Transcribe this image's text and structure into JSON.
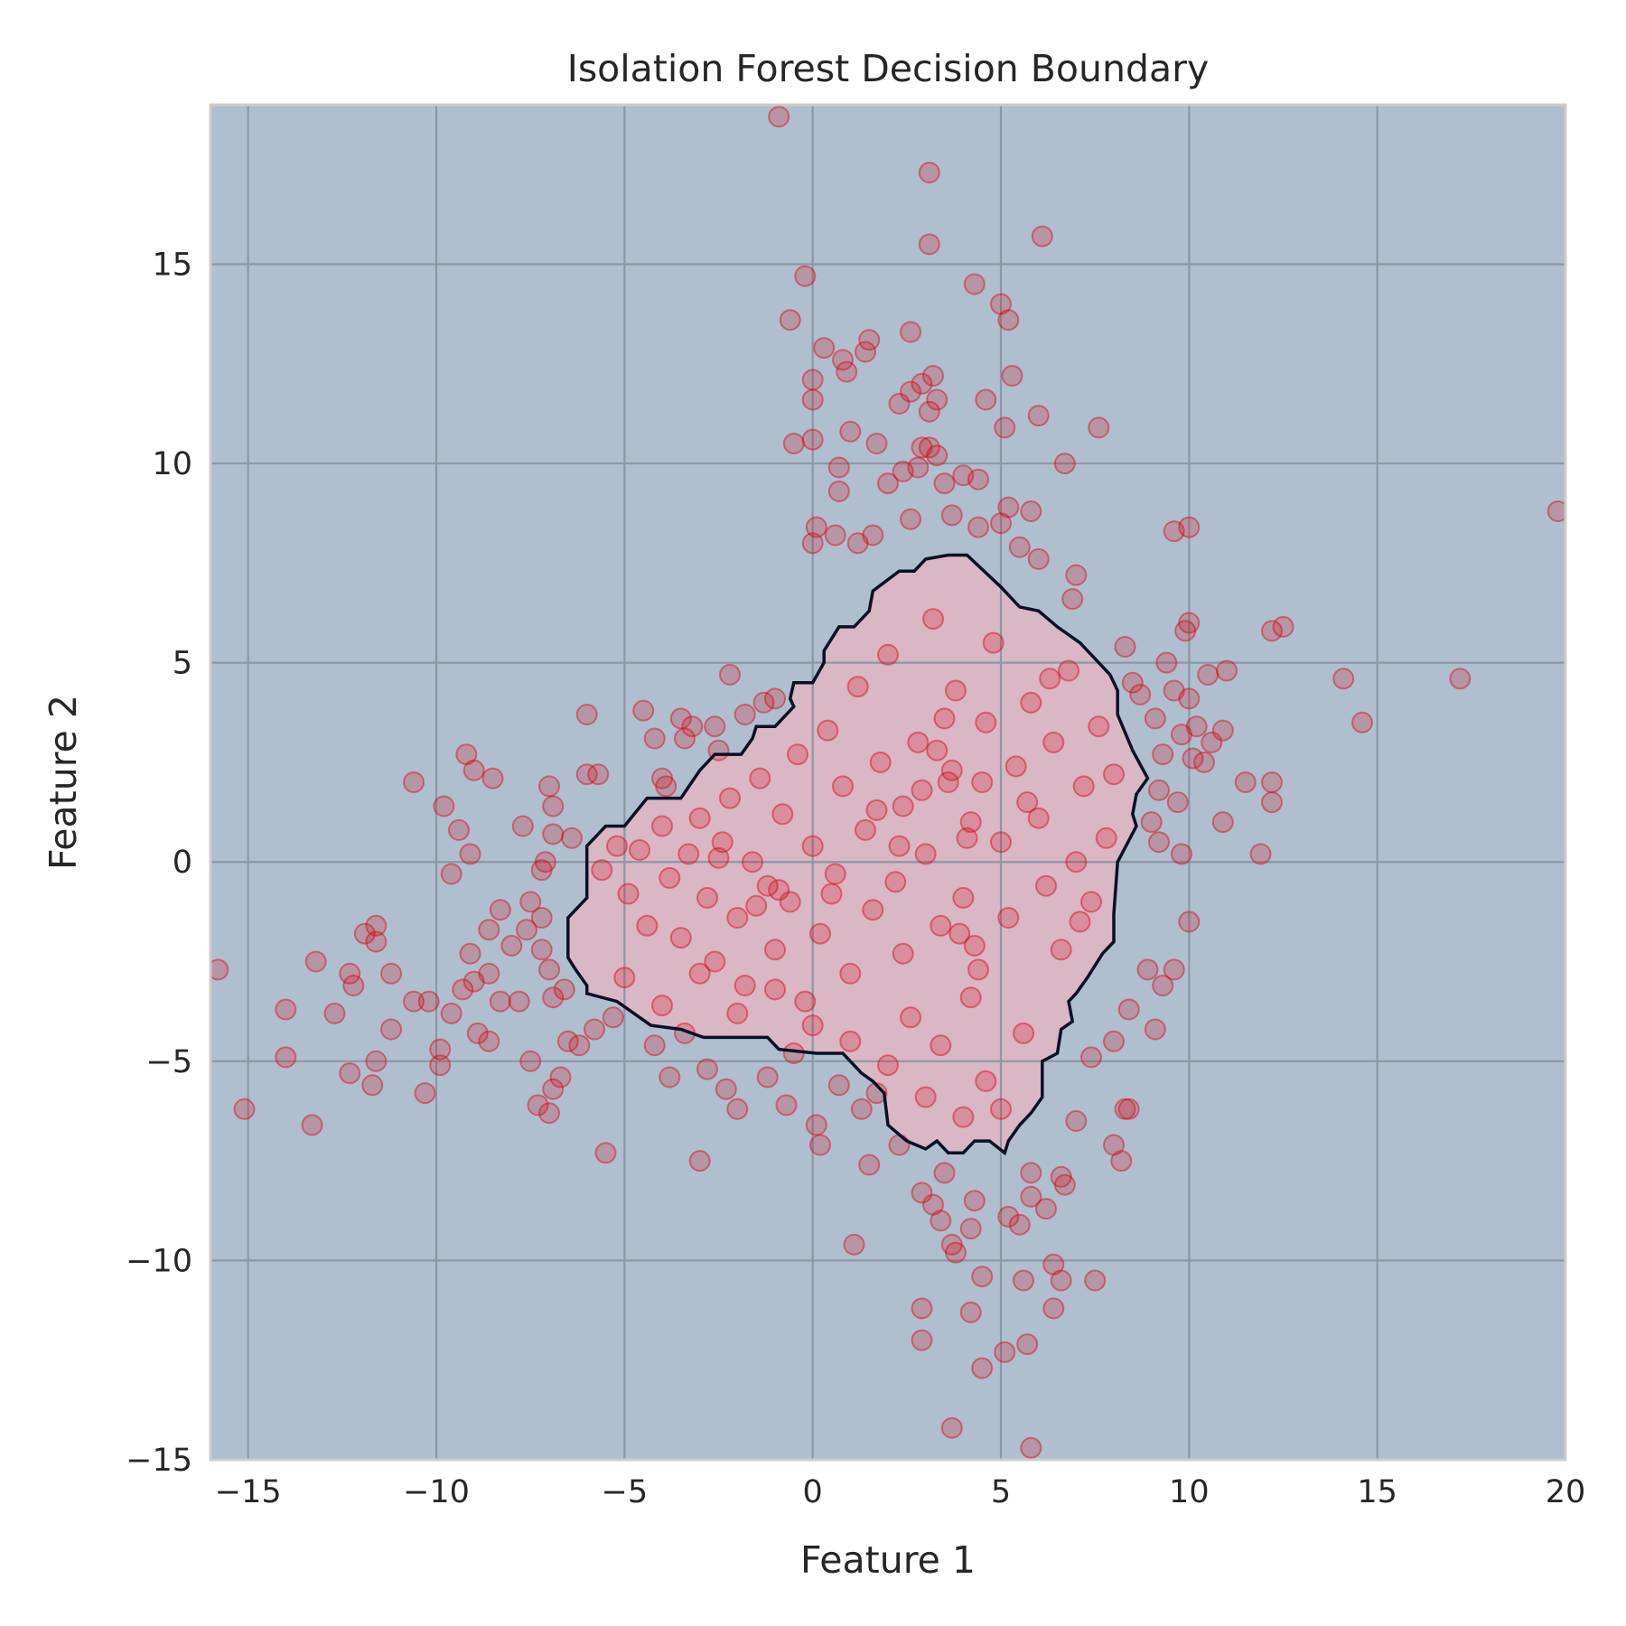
{
  "chart_data": {
    "type": "scatter",
    "title": "Isolation Forest Decision Boundary",
    "xlabel": "Feature 1",
    "ylabel": "Feature 2",
    "xlim": [
      -16,
      20
    ],
    "ylim": [
      -15,
      19
    ],
    "xticks": [
      -15,
      -10,
      -5,
      0,
      5,
      10,
      15,
      20
    ],
    "yticks": [
      -15,
      -10,
      -5,
      0,
      5,
      10,
      15
    ],
    "xtick_labels": [
      "−15",
      "−10",
      "−5",
      "0",
      "5",
      "10",
      "15",
      "20"
    ],
    "ytick_labels": [
      "−15",
      "−10",
      "−5",
      "0",
      "5",
      "10",
      "15"
    ],
    "grid": true,
    "colors": {
      "outlier_region": "#b0bfcf",
      "inlier_region": "#d9b7c4",
      "points": "#d7000f",
      "boundary": "#0b1026",
      "grid": "#8c97a6"
    },
    "boundary": [
      [
        -6.0,
        0.4
      ],
      [
        -5.5,
        0.9
      ],
      [
        -5.0,
        0.9
      ],
      [
        -4.4,
        1.6
      ],
      [
        -3.5,
        1.6
      ],
      [
        -3.0,
        2.3
      ],
      [
        -2.6,
        2.7
      ],
      [
        -1.9,
        2.7
      ],
      [
        -1.6,
        3.1
      ],
      [
        -1.5,
        3.4
      ],
      [
        -1.0,
        3.4
      ],
      [
        -0.5,
        3.9
      ],
      [
        -0.6,
        4.1
      ],
      [
        -0.5,
        4.5
      ],
      [
        0.0,
        4.5
      ],
      [
        0.3,
        5.0
      ],
      [
        0.3,
        5.3
      ],
      [
        0.5,
        5.6
      ],
      [
        0.7,
        5.9
      ],
      [
        1.1,
        5.9
      ],
      [
        1.5,
        6.3
      ],
      [
        1.6,
        6.8
      ],
      [
        2.3,
        7.3
      ],
      [
        2.7,
        7.3
      ],
      [
        3.0,
        7.6
      ],
      [
        3.6,
        7.7
      ],
      [
        4.1,
        7.7
      ],
      [
        5.0,
        6.9
      ],
      [
        5.5,
        6.4
      ],
      [
        6.0,
        6.3
      ],
      [
        6.5,
        5.9
      ],
      [
        7.1,
        5.5
      ],
      [
        7.5,
        5.1
      ],
      [
        7.9,
        4.7
      ],
      [
        8.1,
        4.3
      ],
      [
        8.1,
        3.7
      ],
      [
        8.5,
        2.8
      ],
      [
        8.9,
        2.1
      ],
      [
        8.6,
        1.7
      ],
      [
        8.5,
        1.2
      ],
      [
        8.6,
        0.9
      ],
      [
        8.1,
        0.0
      ],
      [
        8.0,
        -1.3
      ],
      [
        8.0,
        -2.0
      ],
      [
        7.7,
        -2.3
      ],
      [
        7.3,
        -2.9
      ],
      [
        7.0,
        -3.3
      ],
      [
        6.8,
        -3.5
      ],
      [
        6.9,
        -4.0
      ],
      [
        6.6,
        -4.2
      ],
      [
        6.5,
        -4.8
      ],
      [
        6.1,
        -5.0
      ],
      [
        6.1,
        -5.9
      ],
      [
        5.8,
        -6.3
      ],
      [
        5.5,
        -6.6
      ],
      [
        5.2,
        -7.0
      ],
      [
        5.1,
        -7.3
      ],
      [
        4.7,
        -7.0
      ],
      [
        4.3,
        -7.0
      ],
      [
        4.0,
        -7.3
      ],
      [
        3.6,
        -7.3
      ],
      [
        3.3,
        -7.0
      ],
      [
        3.0,
        -7.2
      ],
      [
        2.5,
        -7.0
      ],
      [
        2.0,
        -6.6
      ],
      [
        1.9,
        -5.8
      ],
      [
        1.6,
        -5.5
      ],
      [
        1.3,
        -5.3
      ],
      [
        0.8,
        -4.8
      ],
      [
        0.1,
        -4.8
      ],
      [
        -0.9,
        -4.7
      ],
      [
        -1.2,
        -4.4
      ],
      [
        -2.9,
        -4.4
      ],
      [
        -3.5,
        -4.2
      ],
      [
        -4.3,
        -4.1
      ],
      [
        -5.2,
        -3.5
      ],
      [
        -6.0,
        -3.3
      ],
      [
        -6.0,
        -3.1
      ],
      [
        -6.3,
        -2.7
      ],
      [
        -6.5,
        -2.4
      ],
      [
        -6.5,
        -1.4
      ],
      [
        -6.0,
        -0.9
      ]
    ],
    "outliers": [
      [
        -0.9,
        18.7
      ],
      [
        3.1,
        17.3
      ],
      [
        3.1,
        15.5
      ],
      [
        6.1,
        15.7
      ],
      [
        -0.2,
        14.7
      ],
      [
        4.3,
        14.5
      ],
      [
        5.0,
        14.0
      ],
      [
        -0.6,
        13.6
      ],
      [
        5.2,
        13.6
      ],
      [
        0.3,
        12.9
      ],
      [
        1.5,
        13.1
      ],
      [
        2.6,
        13.3
      ],
      [
        0.8,
        12.6
      ],
      [
        1.4,
        12.8
      ],
      [
        0.0,
        12.1
      ],
      [
        3.2,
        12.2
      ],
      [
        5.3,
        12.2
      ],
      [
        0.9,
        12.3
      ],
      [
        2.9,
        12.0
      ],
      [
        2.6,
        11.8
      ],
      [
        0.0,
        11.6
      ],
      [
        2.3,
        11.5
      ],
      [
        3.3,
        11.6
      ],
      [
        4.6,
        11.6
      ],
      [
        3.1,
        11.3
      ],
      [
        6.0,
        11.2
      ],
      [
        5.1,
        10.9
      ],
      [
        7.6,
        10.9
      ],
      [
        1.0,
        10.8
      ],
      [
        3.1,
        10.4
      ],
      [
        -0.5,
        10.5
      ],
      [
        0.0,
        10.6
      ],
      [
        1.7,
        10.5
      ],
      [
        2.9,
        10.4
      ],
      [
        3.3,
        10.2
      ],
      [
        0.7,
        9.9
      ],
      [
        2.4,
        9.8
      ],
      [
        2.8,
        9.9
      ],
      [
        4.0,
        9.7
      ],
      [
        6.7,
        10.0
      ],
      [
        2.0,
        9.5
      ],
      [
        3.5,
        9.5
      ],
      [
        4.4,
        9.6
      ],
      [
        0.7,
        9.3
      ],
      [
        5.2,
        8.9
      ],
      [
        5.8,
        8.8
      ],
      [
        2.6,
        8.6
      ],
      [
        3.7,
        8.7
      ],
      [
        4.4,
        8.4
      ],
      [
        0.1,
        8.4
      ],
      [
        1.2,
        8.0
      ],
      [
        5.0,
        8.5
      ],
      [
        9.6,
        8.3
      ],
      [
        10.0,
        8.4
      ],
      [
        0.0,
        8.0
      ],
      [
        0.6,
        8.2
      ],
      [
        1.6,
        8.2
      ],
      [
        5.5,
        7.9
      ],
      [
        6.0,
        7.6
      ],
      [
        7.0,
        7.2
      ],
      [
        6.9,
        6.6
      ],
      [
        8.3,
        5.4
      ],
      [
        9.4,
        5.0
      ],
      [
        9.9,
        5.8
      ],
      [
        10.0,
        6.0
      ],
      [
        12.2,
        5.8
      ],
      [
        12.5,
        5.9
      ],
      [
        8.5,
        4.5
      ],
      [
        8.7,
        4.2
      ],
      [
        9.6,
        4.3
      ],
      [
        10.0,
        4.1
      ],
      [
        10.5,
        4.7
      ],
      [
        11.0,
        4.8
      ],
      [
        14.1,
        4.6
      ],
      [
        17.2,
        4.6
      ],
      [
        9.1,
        3.6
      ],
      [
        9.8,
        3.2
      ],
      [
        10.2,
        3.4
      ],
      [
        10.6,
        3.0
      ],
      [
        10.9,
        3.3
      ],
      [
        14.6,
        3.5
      ],
      [
        19.8,
        8.8
      ],
      [
        9.3,
        2.7
      ],
      [
        10.1,
        2.6
      ],
      [
        10.4,
        2.5
      ],
      [
        11.5,
        2.0
      ],
      [
        12.2,
        2.0
      ],
      [
        9.2,
        1.8
      ],
      [
        9.7,
        1.5
      ],
      [
        12.2,
        1.5
      ],
      [
        9.0,
        1.0
      ],
      [
        10.9,
        1.0
      ],
      [
        9.2,
        0.5
      ],
      [
        9.8,
        0.2
      ],
      [
        11.9,
        0.2
      ],
      [
        10.0,
        -1.5
      ],
      [
        8.9,
        -2.7
      ],
      [
        9.6,
        -2.7
      ],
      [
        9.3,
        -3.1
      ],
      [
        8.4,
        -3.7
      ],
      [
        9.1,
        -4.2
      ],
      [
        8.0,
        -4.5
      ],
      [
        7.4,
        -4.9
      ],
      [
        8.3,
        -6.2
      ],
      [
        8.4,
        -6.2
      ],
      [
        8.0,
        -7.1
      ],
      [
        8.2,
        -7.5
      ],
      [
        7.0,
        -6.5
      ],
      [
        6.6,
        -7.9
      ],
      [
        6.7,
        -8.1
      ],
      [
        5.8,
        -7.8
      ],
      [
        5.8,
        -8.4
      ],
      [
        5.2,
        -8.9
      ],
      [
        5.5,
        -9.1
      ],
      [
        6.2,
        -8.7
      ],
      [
        4.3,
        -8.5
      ],
      [
        4.2,
        -9.2
      ],
      [
        3.4,
        -9.0
      ],
      [
        3.7,
        -9.6
      ],
      [
        3.8,
        -9.8
      ],
      [
        4.5,
        -10.4
      ],
      [
        5.6,
        -10.5
      ],
      [
        6.4,
        -10.1
      ],
      [
        6.6,
        -10.5
      ],
      [
        7.5,
        -10.5
      ],
      [
        2.9,
        -11.2
      ],
      [
        4.2,
        -11.3
      ],
      [
        6.4,
        -11.2
      ],
      [
        2.9,
        -12.0
      ],
      [
        5.1,
        -12.3
      ],
      [
        5.7,
        -12.1
      ],
      [
        4.5,
        -12.7
      ],
      [
        3.7,
        -14.2
      ],
      [
        5.8,
        -14.7
      ],
      [
        3.2,
        -8.6
      ],
      [
        2.9,
        -8.3
      ],
      [
        3.5,
        -7.8
      ],
      [
        2.3,
        -7.1
      ],
      [
        1.5,
        -7.6
      ],
      [
        1.1,
        -9.6
      ],
      [
        0.2,
        -7.1
      ],
      [
        0.1,
        -6.6
      ],
      [
        -0.7,
        -6.1
      ],
      [
        1.3,
        -6.2
      ],
      [
        -3.0,
        -7.5
      ],
      [
        -2.0,
        -6.2
      ],
      [
        -2.3,
        -5.7
      ],
      [
        -1.2,
        -5.4
      ],
      [
        0.7,
        -5.6
      ],
      [
        1.7,
        -5.8
      ],
      [
        -0.5,
        -4.8
      ],
      [
        -5.5,
        -7.3
      ],
      [
        -3.8,
        -5.4
      ],
      [
        -3.4,
        -4.3
      ],
      [
        -2.8,
        -5.2
      ],
      [
        -4.2,
        -4.6
      ],
      [
        -5.3,
        -3.9
      ],
      [
        -5.8,
        -4.2
      ],
      [
        -6.2,
        -4.6
      ],
      [
        -6.5,
        -4.5
      ],
      [
        -6.7,
        -5.4
      ],
      [
        -6.9,
        -5.7
      ],
      [
        -7.0,
        -6.3
      ],
      [
        -7.3,
        -6.1
      ],
      [
        -7.5,
        -5.0
      ],
      [
        -7.8,
        -3.5
      ],
      [
        -8.3,
        -3.5
      ],
      [
        -8.6,
        -4.5
      ],
      [
        -8.9,
        -4.3
      ],
      [
        -9.3,
        -3.2
      ],
      [
        -9.6,
        -3.8
      ],
      [
        -9.9,
        -4.7
      ],
      [
        -9.9,
        -5.1
      ],
      [
        -10.3,
        -5.8
      ],
      [
        -10.2,
        -3.5
      ],
      [
        -10.6,
        -3.5
      ],
      [
        -11.2,
        -4.2
      ],
      [
        -11.6,
        -5.0
      ],
      [
        -11.7,
        -5.6
      ],
      [
        -12.3,
        -5.3
      ],
      [
        -12.2,
        -3.1
      ],
      [
        -12.3,
        -2.8
      ],
      [
        -11.2,
        -2.8
      ],
      [
        -11.6,
        -2.0
      ],
      [
        -11.6,
        -1.6
      ],
      [
        -11.9,
        -1.8
      ],
      [
        -12.7,
        -3.8
      ],
      [
        -13.2,
        -2.5
      ],
      [
        -14.0,
        -3.7
      ],
      [
        -14.0,
        -4.9
      ],
      [
        -15.1,
        -6.2
      ],
      [
        -13.3,
        -6.6
      ],
      [
        -15.8,
        -2.7
      ],
      [
        -9.0,
        -3.0
      ],
      [
        -9.1,
        -2.3
      ],
      [
        -8.6,
        -2.8
      ],
      [
        -8.3,
        -1.2
      ],
      [
        -8.6,
        -1.7
      ],
      [
        -8.0,
        -2.1
      ],
      [
        -7.5,
        -1.0
      ],
      [
        -7.6,
        -1.7
      ],
      [
        -7.2,
        -1.4
      ],
      [
        -7.2,
        -2.2
      ],
      [
        -7.0,
        -2.7
      ],
      [
        -6.9,
        -3.4
      ],
      [
        -6.6,
        -3.2
      ],
      [
        -7.2,
        -0.2
      ],
      [
        -7.1,
        0.0
      ],
      [
        -7.7,
        0.9
      ],
      [
        -6.9,
        0.7
      ],
      [
        -6.4,
        0.6
      ],
      [
        -9.1,
        0.2
      ],
      [
        -9.4,
        0.8
      ],
      [
        -9.6,
        -0.3
      ],
      [
        -9.8,
        1.4
      ],
      [
        -10.6,
        2.0
      ],
      [
        -9.2,
        2.7
      ],
      [
        -9.0,
        2.3
      ],
      [
        -8.5,
        2.1
      ],
      [
        -7.0,
        1.9
      ],
      [
        -6.9,
        1.4
      ],
      [
        -6.0,
        2.2
      ],
      [
        -5.7,
        2.2
      ],
      [
        -6.0,
        3.7
      ],
      [
        -4.5,
        3.8
      ],
      [
        -4.2,
        3.1
      ],
      [
        -4.0,
        2.1
      ],
      [
        -3.5,
        3.6
      ],
      [
        -3.2,
        3.4
      ],
      [
        -3.4,
        3.1
      ],
      [
        -2.6,
        3.4
      ],
      [
        -2.5,
        2.8
      ],
      [
        -1.8,
        3.7
      ],
      [
        -1.3,
        4.0
      ],
      [
        -2.2,
        4.7
      ],
      [
        -1.0,
        4.1
      ]
    ],
    "inliers": [
      [
        -5.6,
        -0.2
      ],
      [
        -5.2,
        0.4
      ],
      [
        -4.9,
        -0.8
      ],
      [
        -4.6,
        0.3
      ],
      [
        -4.4,
        -1.6
      ],
      [
        -4.0,
        0.9
      ],
      [
        -3.8,
        -0.4
      ],
      [
        -3.5,
        -1.9
      ],
      [
        -3.3,
        0.2
      ],
      [
        -3.0,
        1.1
      ],
      [
        -2.8,
        -0.9
      ],
      [
        -2.6,
        -2.5
      ],
      [
        -2.4,
        0.5
      ],
      [
        -2.2,
        1.6
      ],
      [
        -2.0,
        -1.4
      ],
      [
        -1.8,
        -3.1
      ],
      [
        -1.6,
        0.0
      ],
      [
        -1.4,
        2.1
      ],
      [
        -1.2,
        -0.6
      ],
      [
        -1.0,
        -2.2
      ],
      [
        -0.8,
        1.2
      ],
      [
        -0.6,
        -1.0
      ],
      [
        -0.4,
        2.7
      ],
      [
        -0.2,
        -3.5
      ],
      [
        0.0,
        0.4
      ],
      [
        0.2,
        -1.8
      ],
      [
        0.4,
        3.3
      ],
      [
        0.6,
        -0.3
      ],
      [
        0.8,
        1.9
      ],
      [
        1.0,
        -2.8
      ],
      [
        1.2,
        4.4
      ],
      [
        1.4,
        0.8
      ],
      [
        1.6,
        -1.2
      ],
      [
        1.8,
        2.5
      ],
      [
        2.0,
        5.2
      ],
      [
        2.2,
        -0.5
      ],
      [
        2.4,
        1.4
      ],
      [
        2.6,
        -3.9
      ],
      [
        2.8,
        3.0
      ],
      [
        3.0,
        0.2
      ],
      [
        3.2,
        6.1
      ],
      [
        3.4,
        -1.6
      ],
      [
        3.6,
        2.0
      ],
      [
        3.8,
        4.3
      ],
      [
        4.0,
        -0.9
      ],
      [
        4.2,
        1.0
      ],
      [
        4.4,
        -2.7
      ],
      [
        4.6,
        3.5
      ],
      [
        4.8,
        5.5
      ],
      [
        5.0,
        0.5
      ],
      [
        5.2,
        -1.4
      ],
      [
        5.4,
        2.4
      ],
      [
        5.6,
        -4.3
      ],
      [
        5.8,
        4.0
      ],
      [
        6.0,
        1.1
      ],
      [
        6.2,
        -0.6
      ],
      [
        6.4,
        3.0
      ],
      [
        6.6,
        -2.2
      ],
      [
        6.8,
        4.8
      ],
      [
        7.0,
        0.0
      ],
      [
        7.2,
        1.9
      ],
      [
        7.4,
        -1.0
      ],
      [
        7.6,
        3.4
      ],
      [
        7.8,
        0.6
      ],
      [
        8.0,
        2.2
      ],
      [
        -5.0,
        -2.9
      ],
      [
        -4.0,
        -3.6
      ],
      [
        -3.0,
        -2.8
      ],
      [
        -2.0,
        -3.8
      ],
      [
        -1.0,
        -3.2
      ],
      [
        0.0,
        -4.1
      ],
      [
        1.0,
        -4.5
      ],
      [
        2.0,
        -5.1
      ],
      [
        3.0,
        -5.9
      ],
      [
        4.0,
        -6.4
      ],
      [
        4.6,
        -5.5
      ],
      [
        5.0,
        -6.2
      ],
      [
        3.4,
        -4.6
      ],
      [
        2.4,
        -2.3
      ],
      [
        4.2,
        -3.4
      ],
      [
        -1.5,
        -1.1
      ],
      [
        -0.9,
        -0.7
      ],
      [
        3.3,
        2.8
      ],
      [
        3.7,
        2.3
      ],
      [
        4.1,
        0.6
      ],
      [
        3.5,
        3.6
      ],
      [
        2.9,
        1.8
      ],
      [
        4.5,
        2.0
      ],
      [
        3.9,
        -1.8
      ],
      [
        4.3,
        -2.1
      ],
      [
        5.7,
        1.5
      ],
      [
        6.3,
        4.6
      ],
      [
        7.1,
        -1.5
      ],
      [
        1.7,
        1.3
      ],
      [
        2.3,
        0.4
      ],
      [
        0.5,
        -0.8
      ],
      [
        -2.5,
        0.1
      ],
      [
        -3.9,
        1.9
      ]
    ]
  }
}
